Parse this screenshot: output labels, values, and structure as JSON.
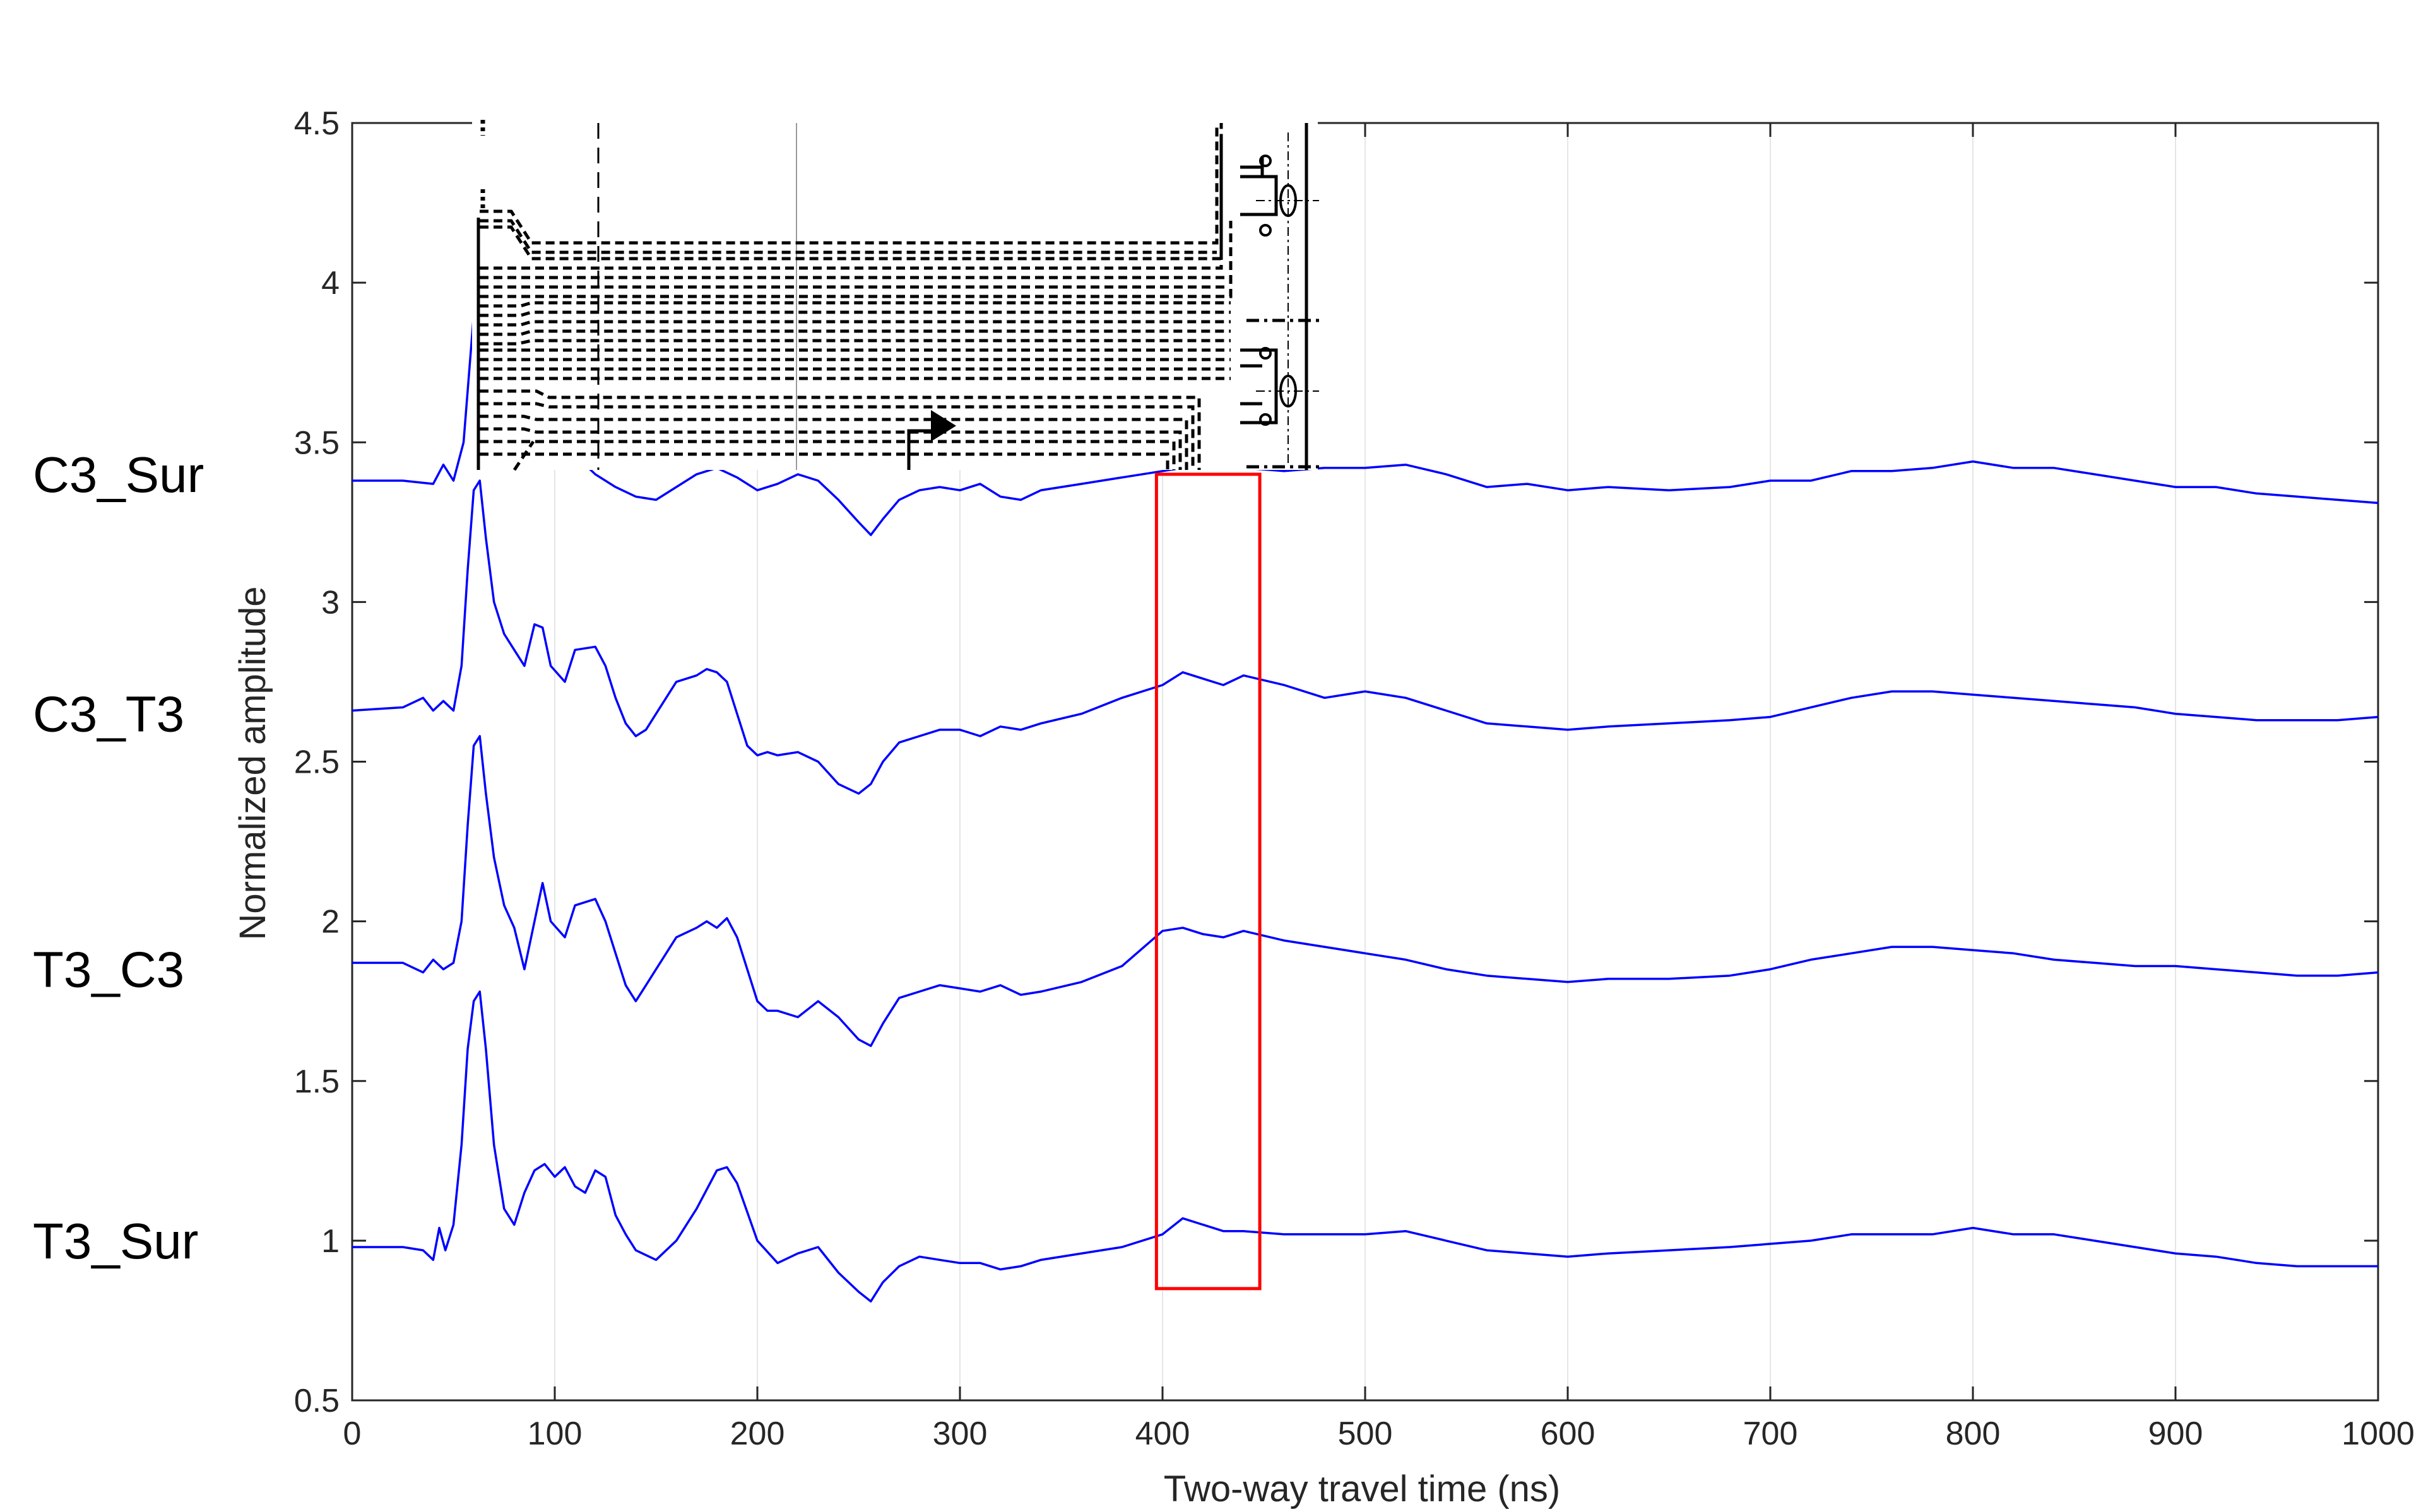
{
  "chart_data": {
    "type": "line",
    "title": "",
    "xlabel": "Two-way travel time (ns)",
    "ylabel": "Normalized amplitude",
    "xlim": [
      0,
      1000
    ],
    "ylim": [
      0.5,
      4.5
    ],
    "xticks": [
      0,
      100,
      200,
      300,
      400,
      500,
      600,
      700,
      800,
      900,
      1000
    ],
    "yticks": [
      0.5,
      1,
      1.5,
      2,
      2.5,
      3,
      3.5,
      4,
      4.5
    ],
    "xtick_labels": [
      "0",
      "100",
      "200",
      "300",
      "400",
      "500",
      "600",
      "700",
      "800",
      "900",
      "1000"
    ],
    "ytick_labels": [
      "0.5",
      "1",
      "1.5",
      "2",
      "2.5",
      "3",
      "3.5",
      "4",
      "4.5"
    ],
    "grid": "vertical",
    "line_color": "#0000ff",
    "highlight": {
      "x": [
        397,
        448
      ],
      "y": [
        0.85,
        3.4
      ],
      "color": "#ff0000"
    },
    "series": [
      {
        "name": "C3_Sur",
        "offset": 3.4,
        "x": [
          0,
          25,
          40,
          45,
          50,
          55,
          60,
          64,
          70,
          80,
          90,
          100,
          110,
          120,
          130,
          140,
          150,
          160,
          170,
          180,
          190,
          200,
          210,
          220,
          230,
          240,
          250,
          256,
          262,
          270,
          280,
          290,
          300,
          310,
          320,
          330,
          340,
          360,
          380,
          400,
          420,
          440,
          460,
          480,
          500,
          520,
          540,
          560,
          580,
          600,
          620,
          650,
          680,
          700,
          720,
          740,
          760,
          780,
          800,
          820,
          840,
          860,
          880,
          900,
          920,
          940,
          960,
          980,
          1000
        ],
        "y": [
          3.38,
          3.38,
          3.37,
          3.43,
          3.38,
          3.5,
          3.9,
          4.2,
          3.95,
          3.65,
          3.55,
          3.5,
          3.46,
          3.4,
          3.36,
          3.33,
          3.32,
          3.36,
          3.4,
          3.42,
          3.39,
          3.35,
          3.37,
          3.4,
          3.38,
          3.32,
          3.25,
          3.21,
          3.26,
          3.32,
          3.35,
          3.36,
          3.35,
          3.37,
          3.33,
          3.32,
          3.35,
          3.37,
          3.39,
          3.41,
          3.43,
          3.42,
          3.41,
          3.42,
          3.42,
          3.43,
          3.4,
          3.36,
          3.37,
          3.35,
          3.36,
          3.35,
          3.36,
          3.38,
          3.38,
          3.41,
          3.41,
          3.42,
          3.44,
          3.42,
          3.42,
          3.4,
          3.38,
          3.36,
          3.36,
          3.34,
          3.33,
          3.32,
          3.31
        ]
      },
      {
        "name": "C3_T3",
        "offset": 2.65,
        "x": [
          0,
          25,
          35,
          40,
          45,
          50,
          54,
          57,
          60,
          63,
          66,
          70,
          75,
          80,
          85,
          90,
          94,
          98,
          105,
          110,
          120,
          125,
          130,
          135,
          140,
          145,
          150,
          155,
          160,
          170,
          175,
          180,
          185,
          190,
          195,
          200,
          205,
          210,
          220,
          230,
          240,
          250,
          256,
          262,
          270,
          280,
          290,
          300,
          310,
          320,
          330,
          340,
          360,
          380,
          400,
          410,
          420,
          430,
          440,
          460,
          480,
          500,
          520,
          540,
          560,
          580,
          600,
          620,
          650,
          680,
          700,
          720,
          740,
          760,
          780,
          800,
          820,
          840,
          860,
          880,
          900,
          920,
          940,
          960,
          980,
          1000
        ],
        "y": [
          2.66,
          2.67,
          2.7,
          2.66,
          2.69,
          2.66,
          2.8,
          3.1,
          3.35,
          3.38,
          3.2,
          3.0,
          2.9,
          2.85,
          2.8,
          2.93,
          2.92,
          2.8,
          2.75,
          2.85,
          2.86,
          2.8,
          2.7,
          2.62,
          2.58,
          2.6,
          2.65,
          2.7,
          2.75,
          2.77,
          2.79,
          2.78,
          2.75,
          2.65,
          2.55,
          2.52,
          2.53,
          2.52,
          2.53,
          2.5,
          2.43,
          2.4,
          2.43,
          2.5,
          2.56,
          2.58,
          2.6,
          2.6,
          2.58,
          2.61,
          2.6,
          2.62,
          2.65,
          2.7,
          2.74,
          2.78,
          2.76,
          2.74,
          2.77,
          2.74,
          2.7,
          2.72,
          2.7,
          2.66,
          2.62,
          2.61,
          2.6,
          2.61,
          2.62,
          2.63,
          2.64,
          2.67,
          2.7,
          2.72,
          2.72,
          2.71,
          2.7,
          2.69,
          2.68,
          2.67,
          2.65,
          2.64,
          2.63,
          2.63,
          2.63,
          2.64
        ]
      },
      {
        "name": "T3_C3",
        "offset": 1.85,
        "x": [
          0,
          25,
          35,
          40,
          45,
          50,
          54,
          57,
          60,
          63,
          66,
          70,
          75,
          80,
          85,
          90,
          94,
          98,
          105,
          110,
          120,
          125,
          130,
          135,
          140,
          145,
          150,
          155,
          160,
          170,
          175,
          180,
          185,
          190,
          195,
          200,
          205,
          210,
          220,
          230,
          240,
          250,
          256,
          262,
          270,
          280,
          290,
          300,
          310,
          320,
          330,
          340,
          360,
          380,
          400,
          410,
          420,
          430,
          440,
          460,
          480,
          500,
          520,
          540,
          560,
          580,
          600,
          620,
          650,
          680,
          700,
          720,
          740,
          760,
          780,
          800,
          820,
          840,
          860,
          880,
          900,
          920,
          940,
          960,
          980,
          1000
        ],
        "y": [
          1.87,
          1.87,
          1.84,
          1.88,
          1.85,
          1.87,
          2.0,
          2.3,
          2.55,
          2.58,
          2.4,
          2.2,
          2.05,
          1.98,
          1.85,
          2.0,
          2.12,
          2.0,
          1.95,
          2.05,
          2.07,
          2.0,
          1.9,
          1.8,
          1.75,
          1.8,
          1.85,
          1.9,
          1.95,
          1.98,
          2.0,
          1.98,
          2.01,
          1.95,
          1.85,
          1.75,
          1.72,
          1.72,
          1.7,
          1.75,
          1.7,
          1.63,
          1.61,
          1.68,
          1.76,
          1.78,
          1.8,
          1.79,
          1.78,
          1.8,
          1.77,
          1.78,
          1.81,
          1.86,
          1.97,
          1.98,
          1.96,
          1.95,
          1.97,
          1.94,
          1.92,
          1.9,
          1.88,
          1.85,
          1.83,
          1.82,
          1.81,
          1.82,
          1.82,
          1.83,
          1.85,
          1.88,
          1.9,
          1.92,
          1.92,
          1.91,
          1.9,
          1.88,
          1.87,
          1.86,
          1.86,
          1.85,
          1.84,
          1.83,
          1.83,
          1.84
        ]
      },
      {
        "name": "T3_Sur",
        "offset": 1.0,
        "x": [
          0,
          25,
          35,
          40,
          43,
          46,
          50,
          54,
          57,
          60,
          63,
          66,
          70,
          75,
          80,
          85,
          90,
          95,
          100,
          105,
          110,
          115,
          120,
          125,
          130,
          135,
          140,
          150,
          160,
          170,
          180,
          185,
          190,
          200,
          210,
          220,
          230,
          240,
          250,
          256,
          262,
          270,
          280,
          290,
          300,
          310,
          320,
          330,
          340,
          360,
          380,
          400,
          410,
          420,
          430,
          440,
          460,
          480,
          500,
          520,
          540,
          560,
          580,
          600,
          620,
          650,
          680,
          700,
          720,
          740,
          760,
          780,
          800,
          820,
          840,
          860,
          880,
          900,
          920,
          940,
          960,
          980,
          1000
        ],
        "y": [
          0.98,
          0.98,
          0.97,
          0.94,
          1.04,
          0.97,
          1.05,
          1.3,
          1.6,
          1.75,
          1.78,
          1.6,
          1.3,
          1.1,
          1.05,
          1.15,
          1.22,
          1.24,
          1.2,
          1.23,
          1.17,
          1.15,
          1.22,
          1.2,
          1.08,
          1.02,
          0.97,
          0.94,
          1.0,
          1.1,
          1.22,
          1.23,
          1.18,
          1.0,
          0.93,
          0.96,
          0.98,
          0.9,
          0.84,
          0.81,
          0.87,
          0.92,
          0.95,
          0.94,
          0.93,
          0.93,
          0.91,
          0.92,
          0.94,
          0.96,
          0.98,
          1.02,
          1.07,
          1.05,
          1.03,
          1.03,
          1.02,
          1.02,
          1.02,
          1.03,
          1.0,
          0.97,
          0.96,
          0.95,
          0.96,
          0.97,
          0.98,
          0.99,
          1.0,
          1.02,
          1.02,
          1.02,
          1.04,
          1.02,
          1.02,
          1.0,
          0.98,
          0.96,
          0.95,
          0.93,
          0.92,
          0.92,
          0.92
        ]
      }
    ]
  }
}
